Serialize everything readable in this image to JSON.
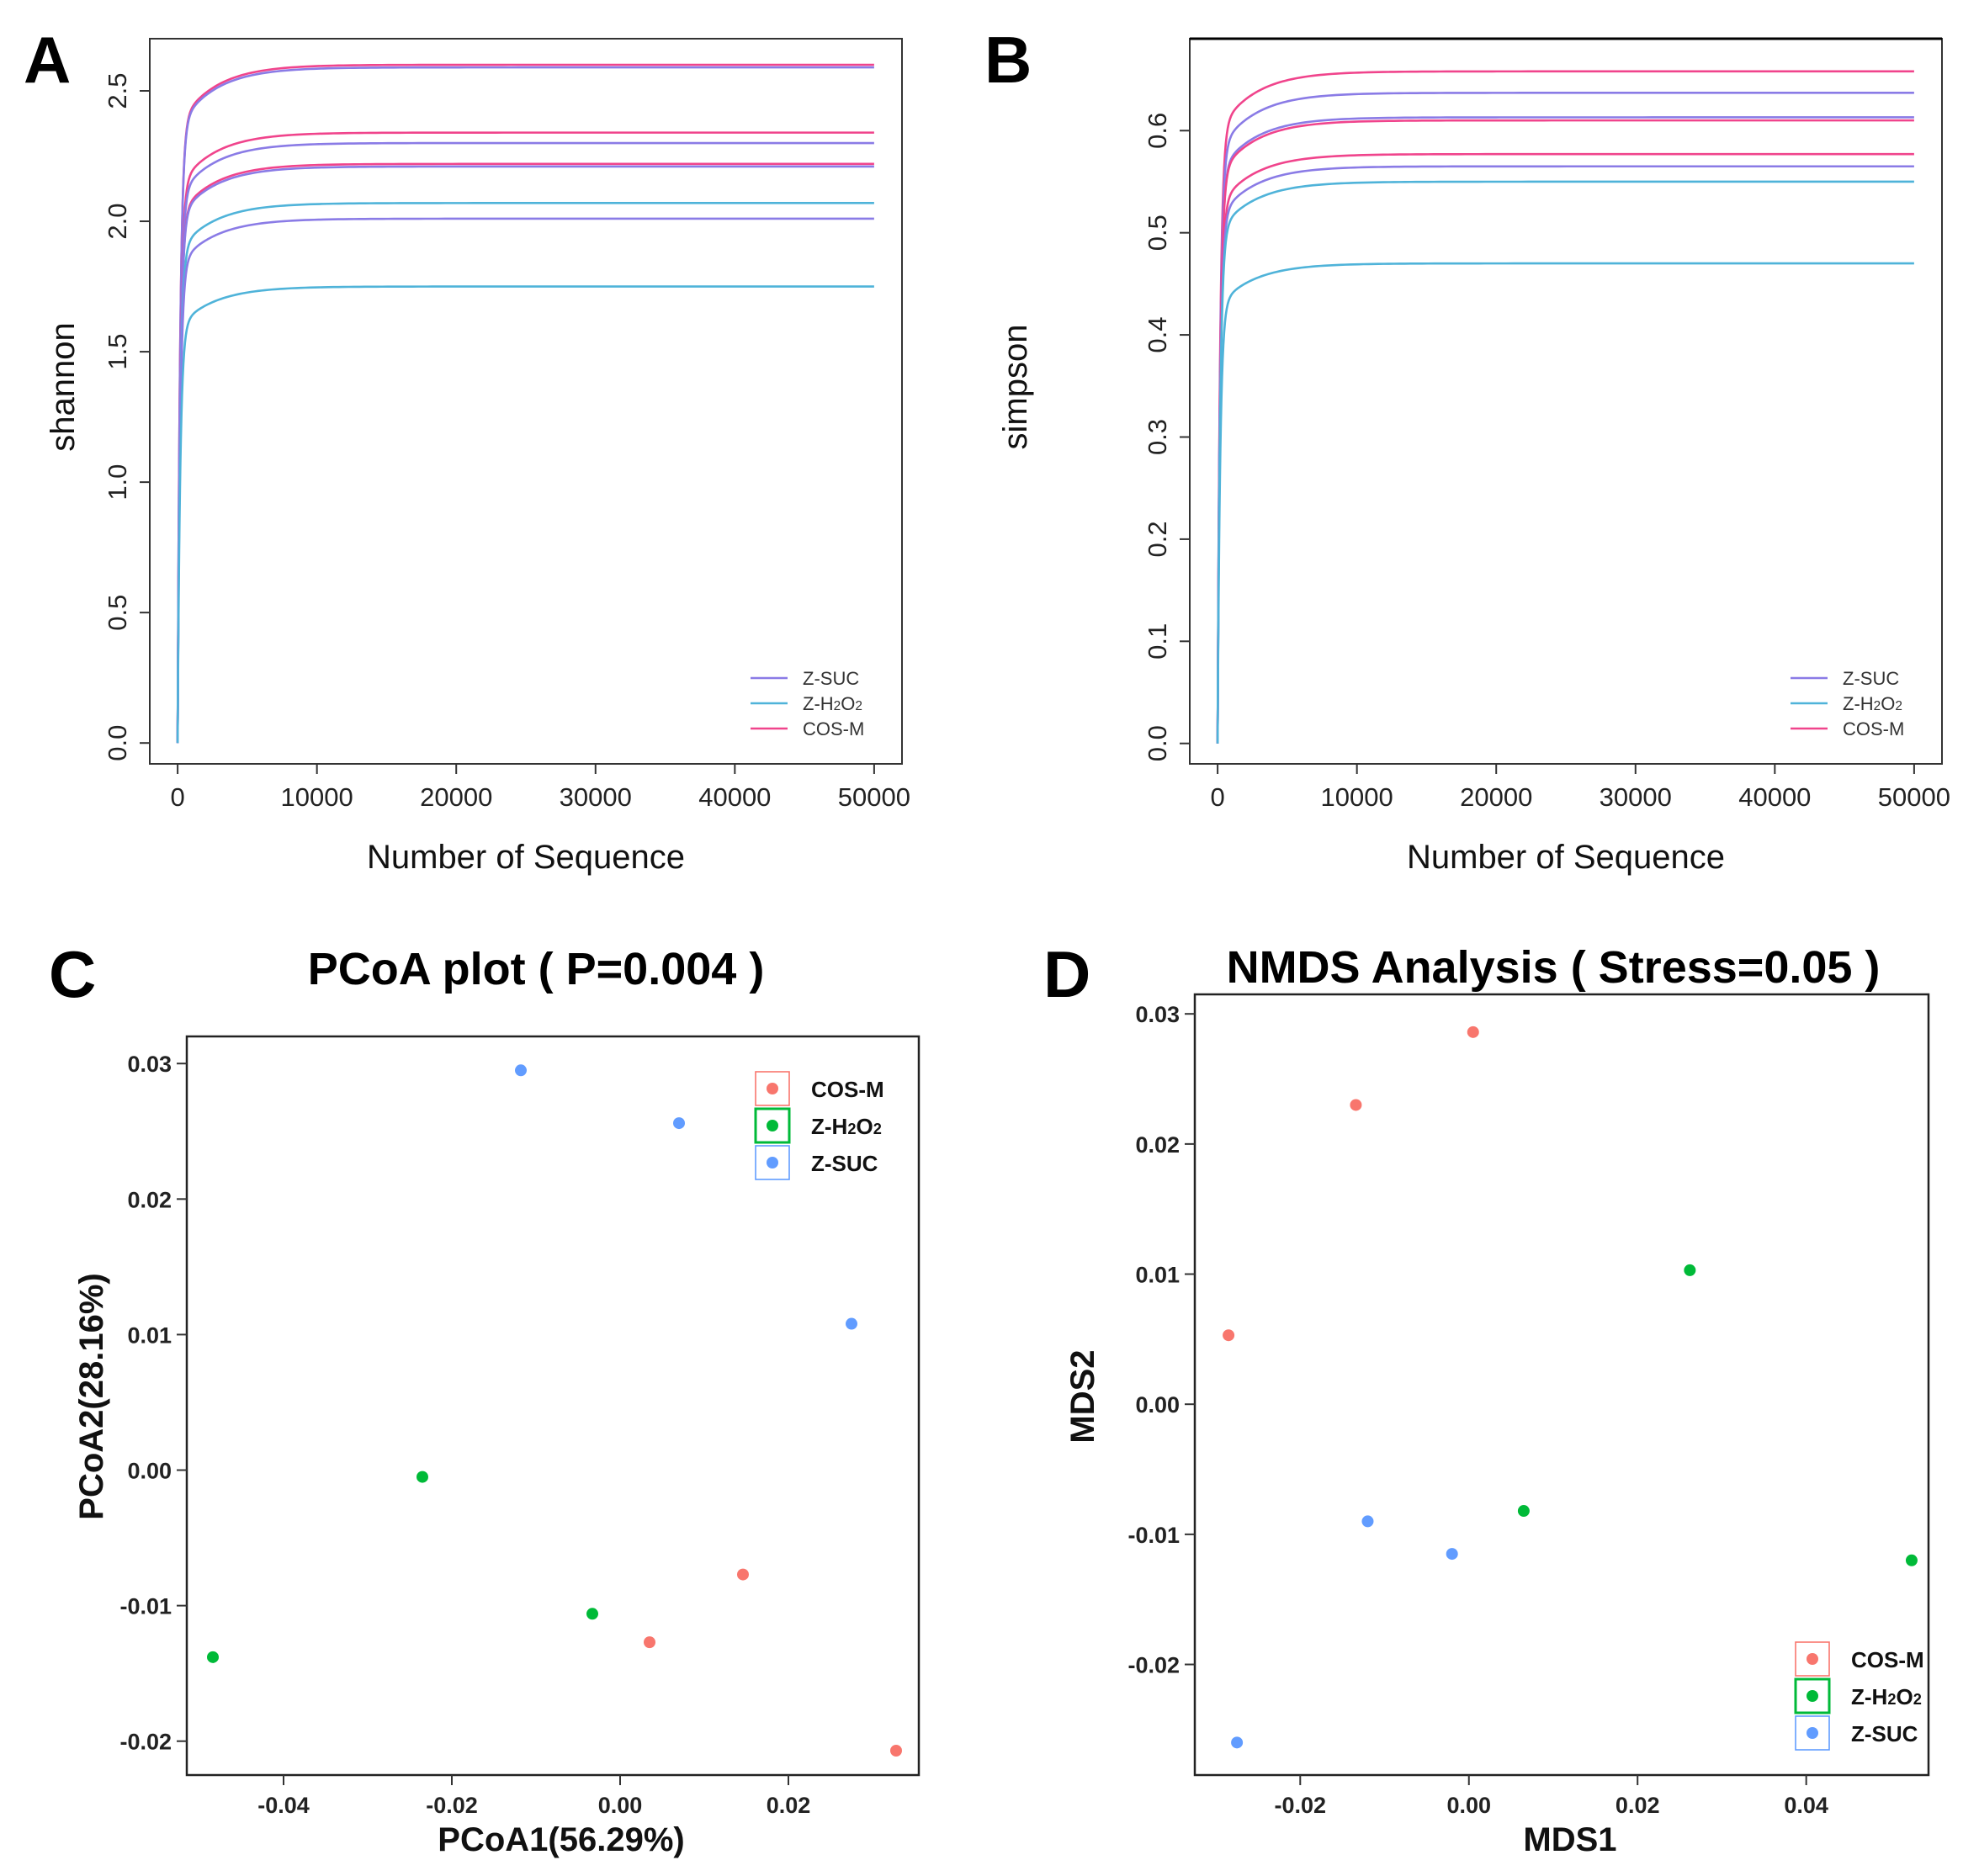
{
  "figure": {
    "panel_labels": [
      "A",
      "B",
      "C",
      "D"
    ]
  },
  "chart_data": [
    {
      "panel": "A",
      "type": "line",
      "title": "",
      "xlabel": "Number of Sequence",
      "ylabel": "shannon",
      "xlim": [
        -2000,
        52000
      ],
      "ylim": [
        -0.08,
        2.7
      ],
      "xticks": [
        0,
        10000,
        20000,
        30000,
        40000,
        50000
      ],
      "xtick_labels": [
        "0",
        "10000",
        "20000",
        "30000",
        "40000",
        "50000"
      ],
      "yticks": [
        0,
        0.5,
        1.0,
        1.5,
        2.0,
        2.5
      ],
      "ytick_labels": [
        "0.0",
        "0.5",
        "1.0",
        "1.5",
        "2.0",
        "2.5"
      ],
      "legend": [
        {
          "label": "Z-SUC",
          "color": "#8a7be6"
        },
        {
          "label": "Z-H₂O₂",
          "color": "#4fb3d9"
        },
        {
          "label": "COS-M",
          "color": "#f0448c"
        }
      ],
      "x_max": 50000,
      "series": [
        {
          "group": "COS-M",
          "color": "#f0448c",
          "plateau": 2.6
        },
        {
          "group": "Z-SUC",
          "color": "#8a7be6",
          "plateau": 2.59
        },
        {
          "group": "COS-M",
          "color": "#f0448c",
          "plateau": 2.34
        },
        {
          "group": "Z-SUC",
          "color": "#8a7be6",
          "plateau": 2.3
        },
        {
          "group": "COS-M",
          "color": "#f0448c",
          "plateau": 2.22
        },
        {
          "group": "Z-SUC",
          "color": "#8a7be6",
          "plateau": 2.21
        },
        {
          "group": "Z-H₂O₂",
          "color": "#4fb3d9",
          "plateau": 2.07
        },
        {
          "group": "Z-SUC",
          "color": "#8a7be6",
          "plateau": 2.01
        },
        {
          "group": "Z-H₂O₂",
          "color": "#4fb3d9",
          "plateau": 1.75
        }
      ]
    },
    {
      "panel": "B",
      "type": "line",
      "title": "",
      "xlabel": "Number of Sequence",
      "ylabel": "simpson",
      "xlim": [
        -2000,
        52000
      ],
      "ylim": [
        -0.02,
        0.69
      ],
      "xticks": [
        0,
        10000,
        20000,
        30000,
        40000,
        50000
      ],
      "xtick_labels": [
        "0",
        "10000",
        "20000",
        "30000",
        "40000",
        "50000"
      ],
      "yticks": [
        0,
        0.1,
        0.2,
        0.3,
        0.4,
        0.5,
        0.6
      ],
      "ytick_labels": [
        "0.0",
        "0.1",
        "0.2",
        "0.3",
        "0.4",
        "0.5",
        "0.6"
      ],
      "legend": [
        {
          "label": "Z-SUC",
          "color": "#8a7be6"
        },
        {
          "label": "Z-H₂O₂",
          "color": "#4fb3d9"
        },
        {
          "label": "COS-M",
          "color": "#f0448c"
        }
      ],
      "x_max": 50000,
      "series": [
        {
          "group": "COS-M",
          "color": "#f0448c",
          "plateau": 0.658
        },
        {
          "group": "Z-SUC",
          "color": "#8a7be6",
          "plateau": 0.637
        },
        {
          "group": "Z-SUC",
          "color": "#8a7be6",
          "plateau": 0.613
        },
        {
          "group": "COS-M",
          "color": "#f0448c",
          "plateau": 0.61
        },
        {
          "group": "COS-M",
          "color": "#f0448c",
          "plateau": 0.577
        },
        {
          "group": "Z-SUC",
          "color": "#8a7be6",
          "plateau": 0.565
        },
        {
          "group": "Z-H₂O₂",
          "color": "#4fb3d9",
          "plateau": 0.55
        },
        {
          "group": "Z-H₂O₂",
          "color": "#4fb3d9",
          "plateau": 0.47
        }
      ]
    },
    {
      "panel": "C",
      "type": "scatter",
      "title": "PCoA plot ( P=0.004 )",
      "xlabel": "PCoA1(56.29%)",
      "ylabel": "PCoA2(28.16%)",
      "xlim": [
        -0.0515,
        0.0355
      ],
      "ylim": [
        -0.0225,
        0.032
      ],
      "xticks": [
        -0.04,
        -0.02,
        0.0,
        0.02
      ],
      "xtick_labels": [
        "-0.04",
        "-0.02",
        "0.00",
        "0.02"
      ],
      "yticks": [
        -0.02,
        -0.01,
        0.0,
        0.01,
        0.02,
        0.03
      ],
      "ytick_labels": [
        "-0.02",
        "-0.01",
        "0.00",
        "0.01",
        "0.02",
        "0.03"
      ],
      "legend": [
        {
          "label": "COS-M",
          "color": "#f8766d"
        },
        {
          "label": "Z-H₂O₂",
          "color": "#00ba38"
        },
        {
          "label": "Z-SUC",
          "color": "#619cff"
        }
      ],
      "series": [
        {
          "name": "COS-M",
          "color": "#f8766d",
          "points": [
            [
              0.0146,
              -0.0077
            ],
            [
              0.0035,
              -0.0127
            ],
            [
              0.0328,
              -0.0207
            ]
          ]
        },
        {
          "name": "Z-H₂O₂",
          "color": "#00ba38",
          "points": [
            [
              -0.0235,
              -0.0005
            ],
            [
              -0.0033,
              -0.0106
            ],
            [
              -0.0484,
              -0.0138
            ]
          ]
        },
        {
          "name": "Z-SUC",
          "color": "#619cff",
          "points": [
            [
              -0.0118,
              0.0295
            ],
            [
              0.007,
              0.0256
            ],
            [
              0.0275,
              0.0108
            ]
          ]
        }
      ]
    },
    {
      "panel": "D",
      "type": "scatter",
      "title": "NMDS Analysis ( Stress=0.05 )",
      "xlabel": "MDS1",
      "ylabel": "MDS2",
      "xlim": [
        -0.0325,
        0.0545
      ],
      "ylim": [
        -0.0285,
        0.0315
      ],
      "xticks": [
        -0.02,
        0.0,
        0.02,
        0.04
      ],
      "xtick_labels": [
        "-0.02",
        "0.00",
        "0.02",
        "0.04"
      ],
      "yticks": [
        -0.02,
        -0.01,
        0.0,
        0.01,
        0.02,
        0.03
      ],
      "ytick_labels": [
        "-0.02",
        "-0.01",
        "0.00",
        "0.01",
        "0.02",
        "0.03"
      ],
      "legend": [
        {
          "label": "COS-M",
          "color": "#f8766d"
        },
        {
          "label": "Z-H₂O₂",
          "color": "#00ba38"
        },
        {
          "label": "Z-SUC",
          "color": "#619cff"
        }
      ],
      "series": [
        {
          "name": "COS-M",
          "color": "#f8766d",
          "points": [
            [
              0.0005,
              0.0286
            ],
            [
              -0.0134,
              0.023
            ],
            [
              -0.0285,
              0.0053
            ]
          ]
        },
        {
          "name": "Z-H₂O₂",
          "color": "#00ba38",
          "points": [
            [
              0.0262,
              0.0103
            ],
            [
              0.0065,
              -0.0082
            ],
            [
              0.0525,
              -0.012
            ]
          ]
        },
        {
          "name": "Z-SUC",
          "color": "#619cff",
          "points": [
            [
              -0.012,
              -0.009
            ],
            [
              -0.002,
              -0.0115
            ],
            [
              -0.0275,
              -0.026
            ]
          ]
        }
      ]
    }
  ]
}
